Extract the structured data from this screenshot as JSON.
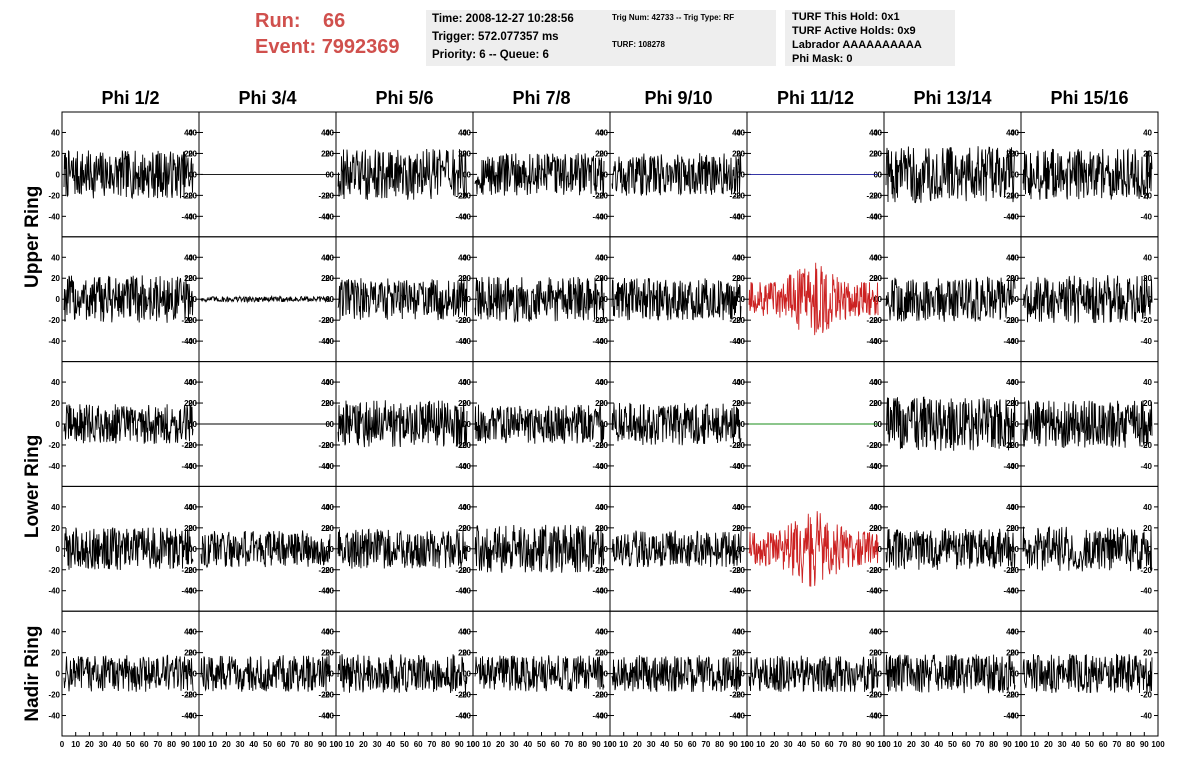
{
  "header": {
    "run_label": "Run:",
    "run_value": "66",
    "event_label": "Event:",
    "event_value": "7992369",
    "time": "Time: 2008-12-27 10:28:56",
    "trigger": "Trigger: 572.077357 ms",
    "priority": "Priority: 6 -- Queue: 6",
    "trig_num": "Trig Num: 42733 -- Trig Type: RF",
    "turf": "TURF: 108278",
    "turf_this_hold": "TURF This Hold: 0x1",
    "turf_active_holds": "TURF Active Holds: 0x9",
    "labrador": "Labrador AAAAAAAAAA",
    "phi_mask": "Phi Mask: 0"
  },
  "colors": {
    "accent_text": "#d0504d",
    "info_bg": "#eeeeee",
    "trace_default": "#000000",
    "trace_red": "#cc2222",
    "trace_blue": "#1a1a99",
    "trace_green": "#1a8c1a"
  },
  "chart_data": {
    "type": "line",
    "columns": [
      "Phi 1/2",
      "Phi 3/4",
      "Phi 5/6",
      "Phi 7/8",
      "Phi 9/10",
      "Phi 11/12",
      "Phi 13/14",
      "Phi 15/16"
    ],
    "row_groups": [
      "Upper Ring",
      "Lower Ring",
      "Nadir Ring"
    ],
    "rows_per_group": [
      2,
      2,
      1
    ],
    "xlim": [
      0,
      100
    ],
    "ylim": [
      -50,
      50
    ],
    "y_ticks": [
      -40,
      -20,
      0,
      20,
      40
    ],
    "x_tick_labels": [
      "0",
      "10",
      "20",
      "30",
      "40",
      "50",
      "60",
      "70",
      "80",
      "90",
      "100"
    ],
    "samples": 260,
    "panels": [
      [
        {
          "amp": 17,
          "color": "#000000"
        },
        {
          "amp": 0,
          "color": "#000000"
        },
        {
          "amp": 18,
          "color": "#000000"
        },
        {
          "amp": 15,
          "color": "#000000"
        },
        {
          "amp": 15,
          "color": "#000000"
        },
        {
          "amp": 0,
          "color": "#1a1a99"
        },
        {
          "amp": 20,
          "color": "#000000"
        },
        {
          "amp": 18,
          "color": "#000000"
        }
      ],
      [
        {
          "amp": 17,
          "color": "#000000"
        },
        {
          "amp": 2,
          "color": "#000000"
        },
        {
          "amp": 15,
          "color": "#000000"
        },
        {
          "amp": 16,
          "color": "#000000"
        },
        {
          "amp": 15,
          "color": "#000000"
        },
        {
          "amp": 22,
          "color": "#cc2222"
        },
        {
          "amp": 16,
          "color": "#000000"
        },
        {
          "amp": 17,
          "color": "#000000"
        }
      ],
      [
        {
          "amp": 14,
          "color": "#000000"
        },
        {
          "amp": 0,
          "color": "#000000"
        },
        {
          "amp": 17,
          "color": "#000000"
        },
        {
          "amp": 14,
          "color": "#000000"
        },
        {
          "amp": 15,
          "color": "#000000"
        },
        {
          "amp": 0,
          "color": "#1a8c1a"
        },
        {
          "amp": 19,
          "color": "#000000"
        },
        {
          "amp": 17,
          "color": "#000000"
        }
      ],
      [
        {
          "amp": 15,
          "color": "#000000"
        },
        {
          "amp": 13,
          "color": "#000000"
        },
        {
          "amp": 14,
          "color": "#000000"
        },
        {
          "amp": 17,
          "color": "#000000"
        },
        {
          "amp": 13,
          "color": "#000000"
        },
        {
          "amp": 22,
          "color": "#cc2222"
        },
        {
          "amp": 15,
          "color": "#000000"
        },
        {
          "amp": 16,
          "color": "#000000"
        }
      ],
      [
        {
          "amp": 13,
          "color": "#000000"
        },
        {
          "amp": 13,
          "color": "#000000"
        },
        {
          "amp": 14,
          "color": "#000000"
        },
        {
          "amp": 13,
          "color": "#000000"
        },
        {
          "amp": 13,
          "color": "#000000"
        },
        {
          "amp": 13,
          "color": "#000000"
        },
        {
          "amp": 14,
          "color": "#000000"
        },
        {
          "amp": 14,
          "color": "#000000"
        }
      ]
    ]
  }
}
